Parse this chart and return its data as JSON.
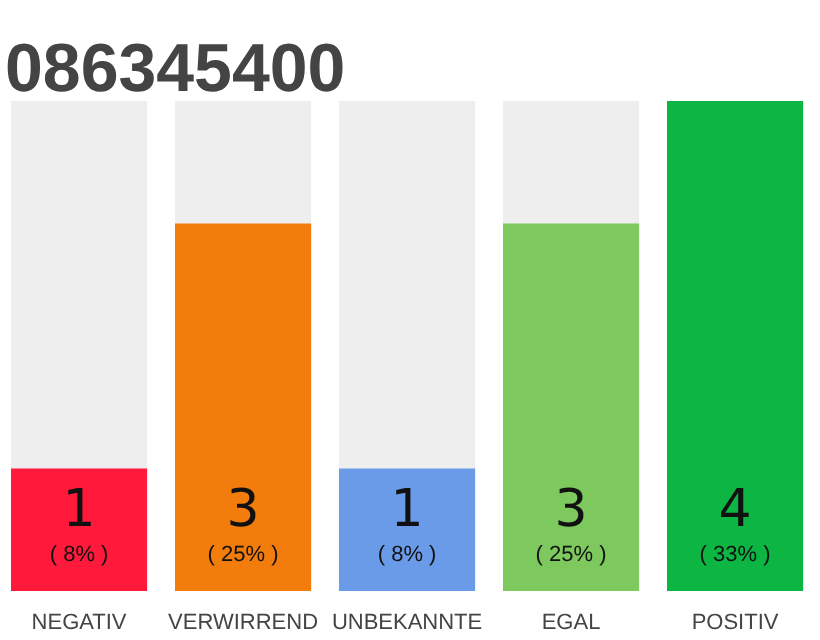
{
  "chart_data": {
    "type": "bar",
    "title": "086345400",
    "categories": [
      "NEGATIV",
      "VERWIRREND",
      "UNBEKANNTE",
      "EGAL",
      "POSITIV"
    ],
    "values": [
      1,
      3,
      1,
      3,
      4
    ],
    "colors": [
      "#ff1a3c",
      "#f27c0c",
      "#6a9be9",
      "#7dc95e",
      "#0db543"
    ],
    "ylim": [
      0,
      4
    ],
    "data_labels": true,
    "grid": false,
    "annotations": [
      "( 8% )",
      "( 25% )",
      "( 8% )",
      "( 25% )",
      "( 33% )"
    ]
  }
}
